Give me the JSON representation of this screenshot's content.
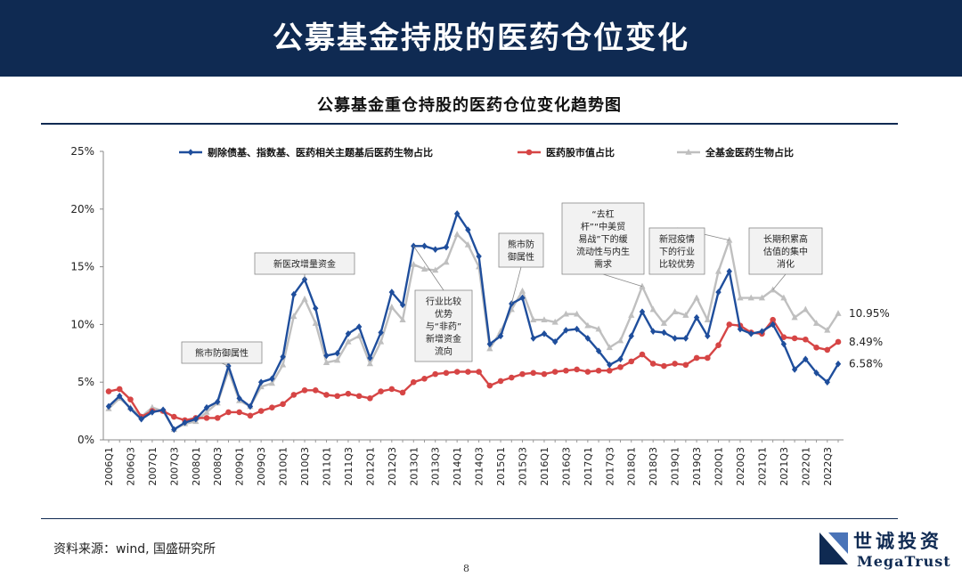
{
  "header": {
    "title": "公募基金持股的医药仓位变化"
  },
  "footer": {
    "source": "资料来源：wind, 国盛研究所",
    "page_number": "8"
  },
  "logo": {
    "name_cn": "世诚投资",
    "name_en": "MegaTrust"
  },
  "colors": {
    "header_bg": "#0f2a52",
    "series_blue": "#1f4e9c",
    "series_red": "#d64545",
    "series_gray": "#bfbfbf"
  },
  "chart_data": {
    "type": "line",
    "title": "公募基金重仓持股的医药仓位变化趋势图",
    "xlabel": "",
    "ylabel": "",
    "ylim": [
      0,
      25
    ],
    "yticks": [
      "0%",
      "5%",
      "10%",
      "15%",
      "20%",
      "25%"
    ],
    "legend_position": "top",
    "grid": false,
    "x": [
      "2006Q1",
      "2006Q2",
      "2006Q3",
      "2006Q4",
      "2007Q1",
      "2007Q2",
      "2007Q3",
      "2007Q4",
      "2008Q1",
      "2008Q2",
      "2008Q3",
      "2008Q4",
      "2009Q1",
      "2009Q2",
      "2009Q3",
      "2009Q4",
      "2010Q1",
      "2010Q2",
      "2010Q3",
      "2010Q4",
      "2011Q1",
      "2011Q2",
      "2011Q3",
      "2011Q4",
      "2012Q1",
      "2012Q2",
      "2012Q3",
      "2012Q4",
      "2013Q1",
      "2013Q2",
      "2013Q3",
      "2013Q4",
      "2014Q1",
      "2014Q2",
      "2014Q3",
      "2014Q4",
      "2015Q1",
      "2015Q2",
      "2015Q3",
      "2015Q4",
      "2016Q1",
      "2016Q2",
      "2016Q3",
      "2016Q4",
      "2017Q1",
      "2017Q2",
      "2017Q3",
      "2017Q4",
      "2018Q1",
      "2018Q2",
      "2018Q3",
      "2018Q4",
      "2019Q1",
      "2019Q2",
      "2019Q3",
      "2019Q4",
      "2020Q1",
      "2020Q2",
      "2020Q3",
      "2020Q4",
      "2021Q1",
      "2021Q2",
      "2021Q3",
      "2021Q4",
      "2022Q1",
      "2022Q2",
      "2022Q3",
      "2022Q4"
    ],
    "x_tick_labels": [
      "2006Q1",
      "2006Q3",
      "2007Q1",
      "2007Q3",
      "2008Q1",
      "2008Q3",
      "2009Q1",
      "2009Q3",
      "2010Q1",
      "2010Q3",
      "2011Q1",
      "2011Q3",
      "2012Q1",
      "2012Q3",
      "2013Q1",
      "2013Q3",
      "2014Q1",
      "2014Q3",
      "2015Q1",
      "2015Q3",
      "2016Q1",
      "2016Q3",
      "2017Q1",
      "2017Q3",
      "2018Q1",
      "2018Q3",
      "2019Q1",
      "2019Q3",
      "2020Q1",
      "2020Q3",
      "2021Q1",
      "2021Q3",
      "2022Q1",
      "2022Q3"
    ],
    "series": [
      {
        "name": "剔除债基、指数基、医药相关主题基后医药生物占比",
        "color": "#1f4e9c",
        "marker": "diamond",
        "values": [
          2.9,
          3.8,
          2.7,
          1.8,
          2.4,
          2.6,
          0.9,
          1.5,
          1.8,
          2.8,
          3.3,
          6.4,
          3.6,
          2.9,
          5.0,
          5.3,
          7.2,
          12.6,
          13.9,
          11.4,
          7.3,
          7.5,
          9.2,
          9.8,
          7.1,
          9.3,
          12.8,
          11.7,
          16.8,
          16.8,
          16.5,
          16.7,
          19.6,
          18.2,
          15.9,
          8.3,
          9.0,
          11.8,
          12.3,
          8.8,
          9.2,
          8.5,
          9.5,
          9.6,
          8.8,
          7.7,
          6.5,
          7.0,
          9.0,
          11.1,
          9.4,
          9.3,
          8.8,
          8.8,
          10.6,
          9.0,
          12.8,
          14.6,
          9.6,
          9.2,
          9.4,
          10.0,
          8.3,
          6.1,
          7.0,
          5.8,
          5.0,
          6.58
        ]
      },
      {
        "name": "医药股市值占比",
        "color": "#d64545",
        "marker": "circle",
        "values": [
          4.2,
          4.4,
          3.5,
          2.0,
          2.5,
          2.5,
          2.0,
          1.7,
          1.9,
          1.9,
          1.9,
          2.4,
          2.4,
          2.1,
          2.5,
          2.8,
          3.1,
          3.9,
          4.3,
          4.3,
          3.9,
          3.8,
          4.0,
          3.8,
          3.6,
          4.2,
          4.4,
          4.1,
          5.0,
          5.3,
          5.7,
          5.8,
          5.9,
          5.9,
          5.9,
          4.7,
          5.1,
          5.4,
          5.7,
          5.8,
          5.7,
          5.9,
          6.0,
          6.1,
          5.9,
          6.0,
          6.0,
          6.3,
          6.8,
          7.4,
          6.6,
          6.4,
          6.6,
          6.5,
          7.1,
          7.1,
          8.2,
          10.0,
          9.9,
          9.3,
          9.2,
          10.4,
          8.9,
          8.8,
          8.7,
          8.0,
          7.8,
          8.49
        ]
      },
      {
        "name": "全基金医药生物占比",
        "color": "#bfbfbf",
        "marker": "triangle",
        "values": [
          2.7,
          3.6,
          2.8,
          2.0,
          2.8,
          2.5,
          0.9,
          1.4,
          1.6,
          2.4,
          3.2,
          6.0,
          3.4,
          2.9,
          4.6,
          4.9,
          6.5,
          10.7,
          12.2,
          10.1,
          6.7,
          6.9,
          8.5,
          9.0,
          6.6,
          8.5,
          11.5,
          10.4,
          15.2,
          14.8,
          14.7,
          15.4,
          17.8,
          16.9,
          15.0,
          7.9,
          9.4,
          11.3,
          12.9,
          10.4,
          10.4,
          10.2,
          10.9,
          10.9,
          9.9,
          9.6,
          8.0,
          8.6,
          10.8,
          13.3,
          11.3,
          10.1,
          11.1,
          10.8,
          12.3,
          10.4,
          14.6,
          17.3,
          12.3,
          12.3,
          12.3,
          13.0,
          12.3,
          10.6,
          11.3,
          10.1,
          9.5,
          10.95
        ]
      }
    ],
    "end_labels": [
      "10.95%",
      "8.49%",
      "6.58%"
    ],
    "annotations": [
      {
        "text": [
          "熊市防御属性"
        ],
        "series": 0,
        "index": 11
      },
      {
        "text": [
          "新医改增量资金"
        ],
        "series": 0,
        "index": 18
      },
      {
        "text": [
          "行业比较",
          "优势",
          "与“非药”",
          "新增资金",
          "流向"
        ],
        "series": 0,
        "index": 28
      },
      {
        "text": [
          "熊市防",
          "御属性"
        ],
        "series": 0,
        "index": 37
      },
      {
        "text": [
          "“去杠",
          "杆”“中美贸",
          "易战”下的缓",
          "流动性与内生",
          "需求"
        ],
        "series": 2,
        "index": 49
      },
      {
        "text": [
          "新冠疫情",
          "下的行业",
          "比较优势"
        ],
        "series": 2,
        "index": 57
      },
      {
        "text": [
          "长期积累高",
          "估值的集中",
          "消化"
        ],
        "series": 2,
        "index": 61
      }
    ]
  }
}
